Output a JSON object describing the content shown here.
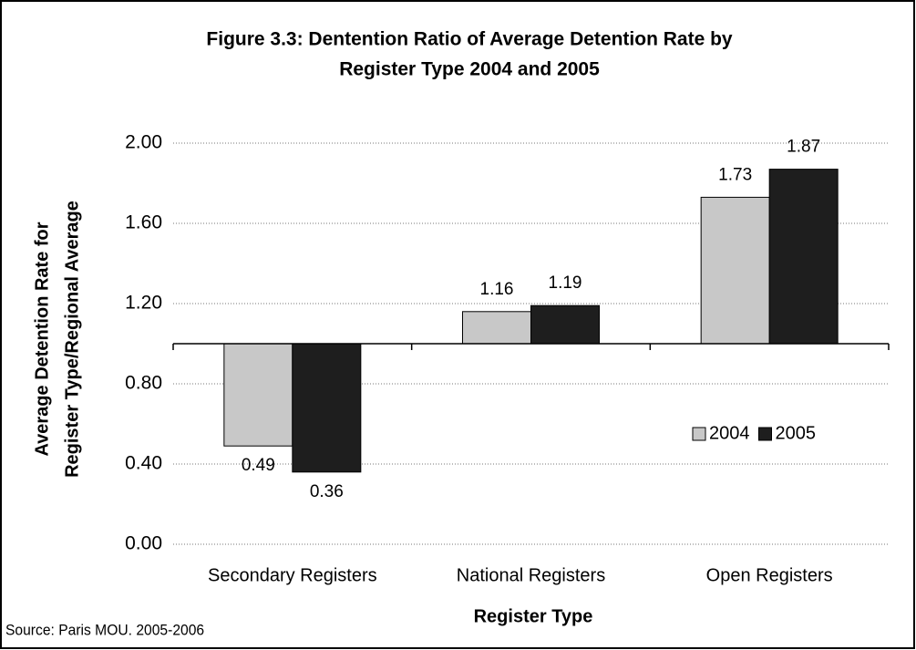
{
  "chart_data": {
    "type": "bar",
    "title": [
      "Figure 3.3: Dentention Ratio of Average Detention Rate by",
      "Register Type 2004 and 2005"
    ],
    "y_axis_label": [
      "Average Detention Rate for",
      "Register Type/Regional Average"
    ],
    "x_axis_label": "Register Type",
    "source": "Source: Paris MOU. 2005-2006",
    "categories": [
      "Secondary Registers",
      "National Registers",
      "Open Registers"
    ],
    "series": [
      {
        "name": "2004",
        "color": "#c8c8c8",
        "values": [
          0.49,
          1.16,
          1.73
        ]
      },
      {
        "name": "2005",
        "color": "#1e1e1e",
        "values": [
          0.36,
          1.19,
          1.87
        ]
      }
    ],
    "ylim": [
      0,
      2
    ],
    "yticks": [
      {
        "value": 0,
        "label": "0.00"
      },
      {
        "value": 0.4,
        "label": "0.40"
      },
      {
        "value": 0.8,
        "label": "0.80"
      },
      {
        "value": 1.2,
        "label": "1.20"
      },
      {
        "value": 1.6,
        "label": "1.60"
      },
      {
        "value": 2,
        "label": "2.00"
      }
    ],
    "x_axis_crosses": 1,
    "grid": true,
    "legend": "right"
  }
}
